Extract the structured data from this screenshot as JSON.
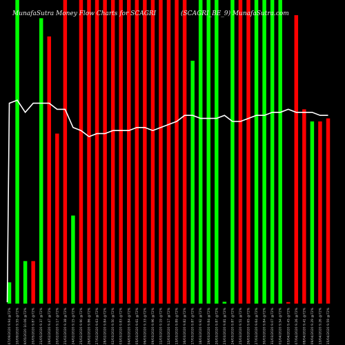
{
  "header": {
    "left": "MunafaSutra  Money Flow  Charts for SCAGRI",
    "right": "(SCAGRI_BE_9)  MunafaSutra.com"
  },
  "chart_data": {
    "type": "bar",
    "colors": {
      "up": "#00ff00",
      "down": "#ff0000",
      "line": "#ffffff",
      "background": "#000000"
    },
    "ylim": [
      0,
      100
    ],
    "categories": [
      "07/09/2020 9.94 @72%",
      "10/09/2020 9.55 @72%",
      "19/05/2020 10.06 @72%",
      "20/05/2020 9.87 @72%",
      "21/05/2020 9.37 @72%",
      "19/02/2020 9.47 @72%",
      "20/02/2020 9.17 @72%",
      "21/02/2020 9.38 @72%",
      "24/02/2020 9.15 @72%",
      "25/02/2020 9.90 @72%",
      "26/02/2020 9.86 @72%",
      "27/02/2020 9.63 @72%",
      "28/02/2020 9.84 @72%",
      "02/03/2020 9.50 @72%",
      "03/03/2020 9.83 @72%",
      "04/03/2020 9.84 @72%",
      "05/03/2020 9.61 @72%",
      "06/03/2020 9.33 @72%",
      "09/03/2020 9.96 @72%",
      "11/03/2020 9.19 @72%",
      "12/03/2020 9.17 @72%",
      "13/03/2020 9.89 @72%",
      "16/03/2020 9.82 @72%",
      "17/03/2020 9.87 @72%",
      "18/03/2020 9.92 @72%",
      "19/03/2020 9.84 @72%",
      "20/03/2020 9.87 @72%",
      "23/03/2020 9.81 @72%",
      "24/03/2020 9.87 @72%",
      "25/03/2020 9.51 @72%",
      "26/03/2020 9.65 @72%",
      "27/03/2020 9.64 @72%",
      "30/03/2020 9.84 @72%",
      "31/03/2020 9.07 @72%",
      "01/04/2020 9.54 @72%",
      "03/04/2020 9.45 @72%",
      "07/04/2020 9.26 @72%",
      "08/04/2020 9.41 @72%",
      "09/04/2020 9.29 @72%",
      "13/04/2020 9.26 @72%",
      "15/04/2020 9.59 @72%"
    ],
    "bar_values": [
      7,
      100,
      14,
      14,
      94,
      88,
      56,
      100,
      29,
      100,
      100,
      100,
      100,
      100,
      100,
      100,
      100,
      100,
      100,
      100,
      100,
      100,
      100,
      80,
      100,
      100,
      100,
      0.6,
      100,
      100,
      100,
      100,
      100,
      100,
      100,
      0.5,
      95,
      64,
      60,
      60,
      61
    ],
    "bar_colors": [
      "up",
      "up",
      "up",
      "down",
      "up",
      "down",
      "down",
      "down",
      "up",
      "down",
      "down",
      "down",
      "down",
      "down",
      "down",
      "down",
      "down",
      "down",
      "down",
      "down",
      "down",
      "down",
      "down",
      "up",
      "up",
      "up",
      "up",
      "up",
      "up",
      "down",
      "down",
      "up",
      "up",
      "up",
      "up",
      "down",
      "down",
      "down",
      "up",
      "down",
      "down"
    ],
    "line_values": [
      66,
      67,
      63,
      66,
      66,
      66,
      64,
      64,
      58,
      57,
      55,
      56,
      56,
      57,
      57,
      57,
      58,
      58,
      57,
      58,
      59,
      60,
      62,
      62,
      61,
      61,
      61,
      62,
      60,
      60,
      61,
      62,
      62,
      63,
      63,
      64,
      63,
      63,
      63,
      62,
      62
    ]
  }
}
